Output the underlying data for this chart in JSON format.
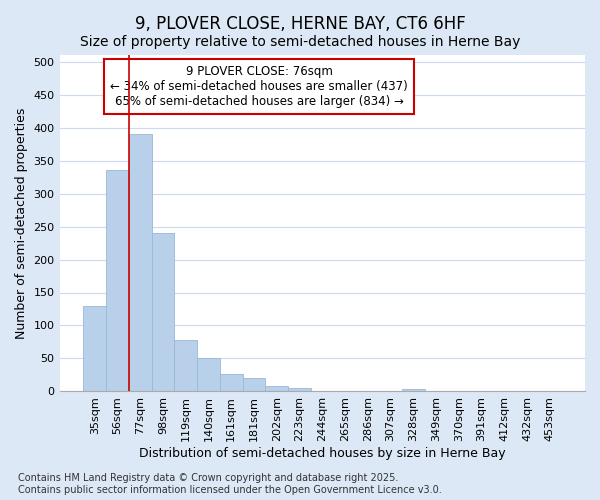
{
  "title": "9, PLOVER CLOSE, HERNE BAY, CT6 6HF",
  "subtitle": "Size of property relative to semi-detached houses in Herne Bay",
  "xlabel": "Distribution of semi-detached houses by size in Herne Bay",
  "ylabel": "Number of semi-detached properties",
  "categories": [
    "35sqm",
    "56sqm",
    "77sqm",
    "98sqm",
    "119sqm",
    "140sqm",
    "161sqm",
    "181sqm",
    "202sqm",
    "223sqm",
    "244sqm",
    "265sqm",
    "286sqm",
    "307sqm",
    "328sqm",
    "349sqm",
    "370sqm",
    "391sqm",
    "412sqm",
    "432sqm",
    "453sqm"
  ],
  "values": [
    130,
    335,
    390,
    240,
    78,
    50,
    27,
    20,
    9,
    6,
    1,
    0,
    0,
    0,
    4,
    0,
    0,
    0,
    0,
    0,
    0
  ],
  "bar_color": "#b8d0ea",
  "bar_edge_color": "#99b8d8",
  "vline_x": 2.0,
  "vline_color": "#cc0000",
  "annotation_title": "9 PLOVER CLOSE: 76sqm",
  "annotation_line1": "← 34% of semi-detached houses are smaller (437)",
  "annotation_line2": "65% of semi-detached houses are larger (834) →",
  "annotation_box_color": "#cc0000",
  "ylim": [
    0,
    510
  ],
  "yticks": [
    0,
    50,
    100,
    150,
    200,
    250,
    300,
    350,
    400,
    450,
    500
  ],
  "background_color": "#ffffff",
  "plot_bg_color": "#ffffff",
  "outer_bg_color": "#dce8f5",
  "grid_color": "#ccdaf0",
  "title_fontsize": 12,
  "subtitle_fontsize": 10,
  "axis_label_fontsize": 9,
  "tick_fontsize": 8,
  "annotation_fontsize": 8.5,
  "footer_fontsize": 7,
  "footer": "Contains HM Land Registry data © Crown copyright and database right 2025.\nContains public sector information licensed under the Open Government Licence v3.0."
}
